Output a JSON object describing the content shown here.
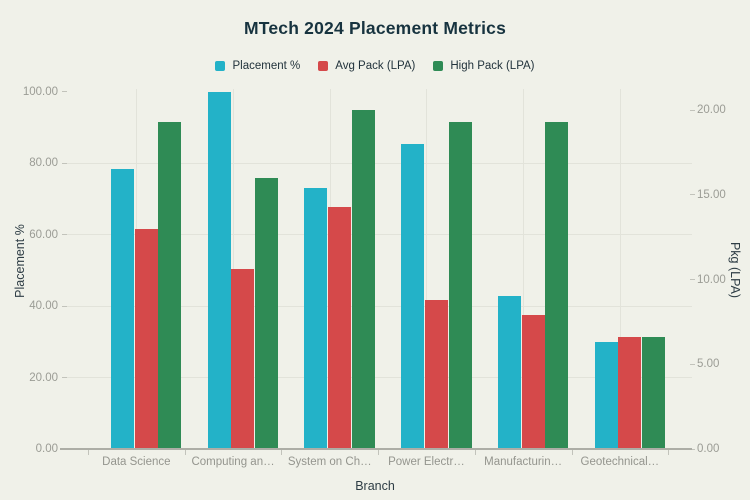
{
  "title": "MTech 2024 Placement Metrics",
  "colors": {
    "background": "#f0f1e9",
    "title_text": "#17333f",
    "grid_line": "#e2e3da",
    "axis_line": "#adaea6",
    "tick_mark": "#c2c3bb",
    "y_tick_text": "#9b9c95",
    "x_tick_text": "#94958e",
    "axis_title_text": "#2e3d45",
    "series_placement": "#23b2c8",
    "series_avg_pack": "#d5494a",
    "series_high_pack": "#2f8b55"
  },
  "chart_data": {
    "type": "bar",
    "title": "MTech 2024 Placement Metrics",
    "xlabel": "Branch",
    "ylabel_left": "Placement %",
    "ylabel_right": "Pkg (LPA)",
    "legend_position": "top",
    "grid": true,
    "categories": [
      "Data Science",
      "Computing an…",
      "System on Ch…",
      "Power Electr…",
      "Manufacturin…",
      "Geotechnical…"
    ],
    "series": [
      {
        "name": "Placement %",
        "axis": "left",
        "color": "#23b2c8",
        "values": [
          78.4,
          100,
          73.1,
          85.3,
          42.9,
          30.0
        ]
      },
      {
        "name": "Avg Pack (LPA)",
        "axis": "right",
        "color": "#d5494a",
        "values": [
          13.0,
          10.6,
          14.3,
          8.8,
          7.9,
          6.6
        ]
      },
      {
        "name": "High Pack (LPA)",
        "axis": "right",
        "color": "#2f8b55",
        "values": [
          19.3,
          16.0,
          20.0,
          19.3,
          19.3,
          6.6
        ]
      }
    ],
    "left_axis": {
      "min": 0,
      "max": 100,
      "tick_labels": [
        "0.00",
        "20.00",
        "40.00",
        "60.00",
        "80.00",
        "100.00"
      ]
    },
    "right_axis": {
      "min": 0,
      "max": 20,
      "tick_labels": [
        "0.00",
        "5.00",
        "10.00",
        "15.00",
        "20.00"
      ]
    }
  }
}
